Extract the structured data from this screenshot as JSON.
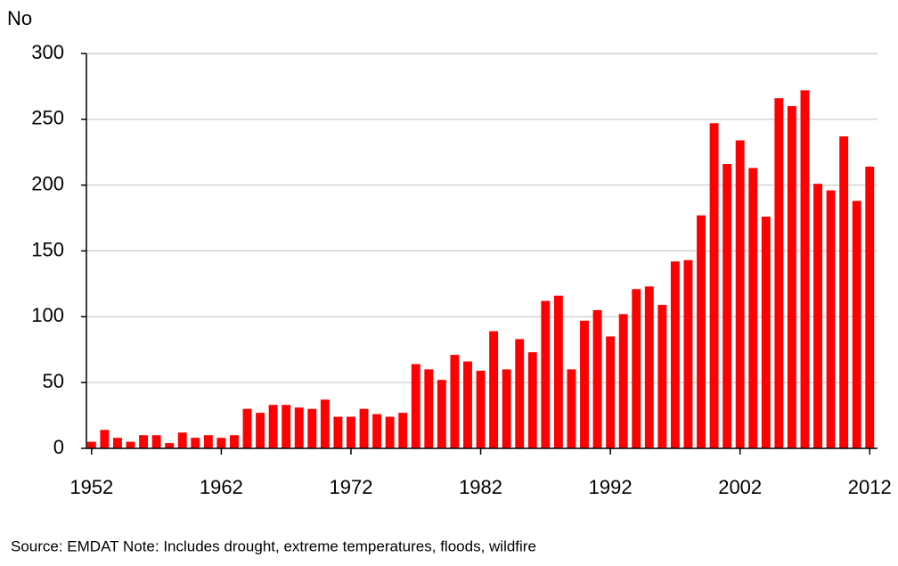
{
  "chart_data": {
    "type": "bar",
    "y_label": "No",
    "note": "Source: EMDAT Note: Includes drought, extreme temperatures, floods, wildfire",
    "x": [
      1952,
      1953,
      1954,
      1955,
      1956,
      1957,
      1958,
      1959,
      1960,
      1961,
      1962,
      1963,
      1964,
      1965,
      1966,
      1967,
      1968,
      1969,
      1970,
      1971,
      1972,
      1973,
      1974,
      1975,
      1976,
      1977,
      1978,
      1979,
      1980,
      1981,
      1982,
      1983,
      1984,
      1985,
      1986,
      1987,
      1988,
      1989,
      1990,
      1991,
      1992,
      1993,
      1994,
      1995,
      1996,
      1997,
      1998,
      1999,
      2000,
      2001,
      2002,
      2003,
      2004,
      2005,
      2006,
      2007,
      2008,
      2009,
      2010,
      2011,
      2012
    ],
    "values": [
      5,
      14,
      8,
      5,
      10,
      10,
      4,
      12,
      8,
      10,
      8,
      10,
      30,
      27,
      33,
      33,
      31,
      30,
      37,
      24,
      24,
      30,
      26,
      24,
      27,
      64,
      60,
      52,
      71,
      66,
      59,
      89,
      60,
      83,
      73,
      112,
      116,
      60,
      97,
      105,
      85,
      102,
      121,
      123,
      109,
      142,
      143,
      177,
      247,
      216,
      234,
      213,
      176,
      266,
      260,
      272,
      201,
      196,
      237,
      188,
      214
    ],
    "color": "#ff0000",
    "xlim": [
      1951.6,
      2012.6
    ],
    "xticks": [
      1952,
      1962,
      1972,
      1982,
      1992,
      2002,
      2012
    ],
    "ylim": [
      0,
      300
    ],
    "yticks": [
      0,
      50,
      100,
      150,
      200,
      250,
      300
    ],
    "grid": true
  }
}
